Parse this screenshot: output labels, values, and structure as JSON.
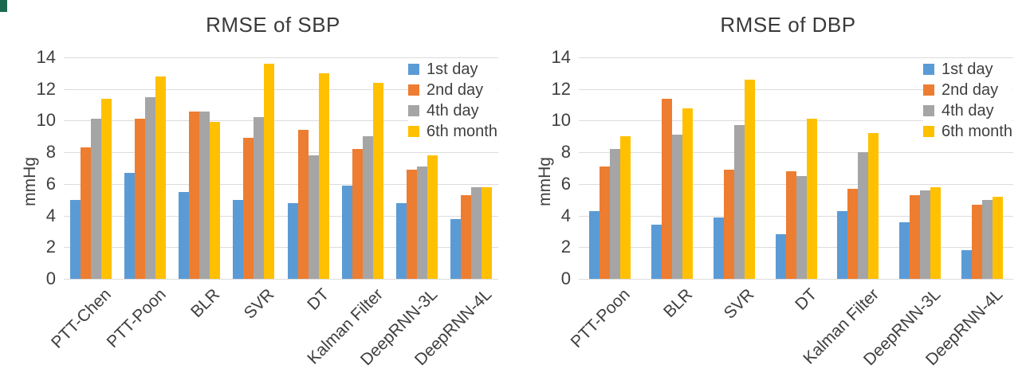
{
  "figure": {
    "background": "#ffffff",
    "corner_mark_color": "#1b6a4f",
    "text_color": "#3f3f3f",
    "gridline_color": "#dcdcdc"
  },
  "chart_data": [
    {
      "type": "bar",
      "title": "RMSE of SBP",
      "xlabel": "",
      "ylabel": "mmHg",
      "ylim": [
        0,
        14
      ],
      "ytick_step": 2,
      "grid": true,
      "legend_position": "top-right",
      "categories": [
        "PTT-Chen",
        "PTT-Poon",
        "BLR",
        "SVR",
        "DT",
        "Kalman Filter",
        "DeepRNN-3L",
        "DeepRNN-4L"
      ],
      "series": [
        {
          "name": "1st day",
          "color": "#5B9BD5",
          "values": [
            5.0,
            6.7,
            5.5,
            5.0,
            4.8,
            5.9,
            4.8,
            3.8
          ]
        },
        {
          "name": "2nd day",
          "color": "#ED7D31",
          "values": [
            8.3,
            10.1,
            10.6,
            8.9,
            9.4,
            8.2,
            6.9,
            5.3
          ]
        },
        {
          "name": "4th day",
          "color": "#A5A5A5",
          "values": [
            10.1,
            11.5,
            10.6,
            10.2,
            7.8,
            9.0,
            7.1,
            5.8
          ]
        },
        {
          "name": "6th month",
          "color": "#FFC000",
          "values": [
            11.4,
            12.8,
            9.9,
            13.6,
            13.0,
            12.4,
            7.8,
            5.8
          ]
        }
      ]
    },
    {
      "type": "bar",
      "title": "RMSE of DBP",
      "xlabel": "",
      "ylabel": "mmHg",
      "ylim": [
        0,
        14
      ],
      "ytick_step": 2,
      "grid": true,
      "legend_position": "top-right",
      "categories": [
        "PTT-Poon",
        "BLR",
        "SVR",
        "DT",
        "Kalman Filter",
        "DeepRNN-3L",
        "DeepRNN-4L"
      ],
      "series": [
        {
          "name": "1st day",
          "color": "#5B9BD5",
          "values": [
            4.3,
            3.4,
            3.9,
            2.8,
            4.3,
            3.6,
            1.8
          ]
        },
        {
          "name": "2nd day",
          "color": "#ED7D31",
          "values": [
            7.1,
            11.4,
            6.9,
            6.8,
            5.7,
            5.3,
            4.7
          ]
        },
        {
          "name": "4th day",
          "color": "#A5A5A5",
          "values": [
            8.2,
            9.1,
            9.7,
            6.5,
            8.0,
            5.6,
            5.0
          ]
        },
        {
          "name": "6th month",
          "color": "#FFC000",
          "values": [
            9.0,
            10.8,
            12.6,
            10.1,
            9.2,
            5.8,
            5.2
          ]
        }
      ]
    }
  ]
}
